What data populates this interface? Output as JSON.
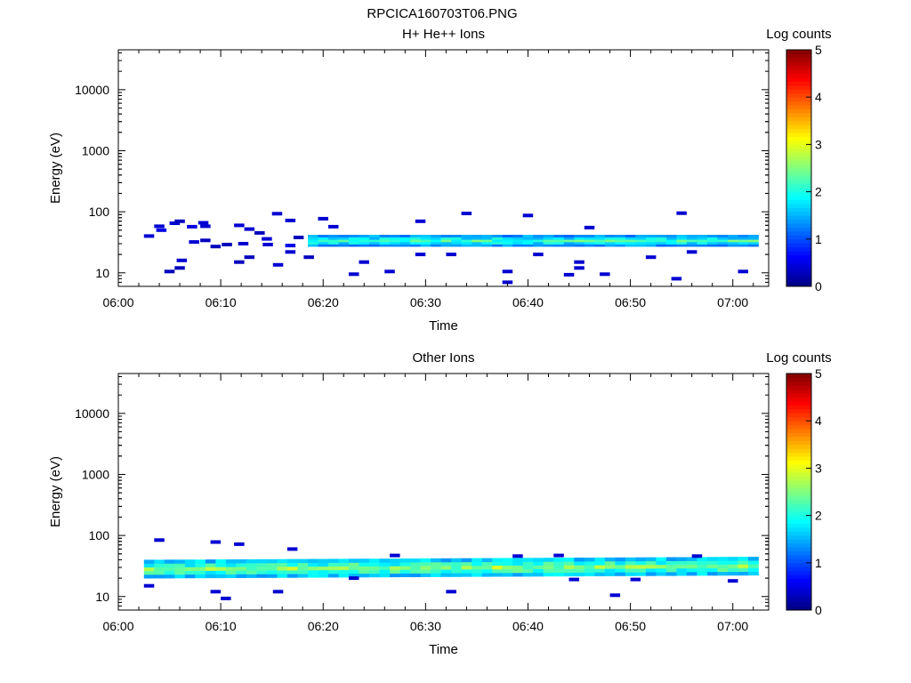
{
  "figure_title": "RPCICA160703T06.PNG",
  "chart_data": [
    {
      "type": "heatmap",
      "title": "H+ He++ Ions",
      "xlabel": "Time",
      "ylabel": "Energy (eV)",
      "x_ticks": [
        "06:00",
        "06:10",
        "06:20",
        "06:30",
        "06:40",
        "06:50",
        "07:00"
      ],
      "xlim_minutes": [
        0,
        63.5
      ],
      "y_scale": "log",
      "ylim": [
        6,
        45000
      ],
      "y_ticks": [
        10,
        100,
        1000,
        10000
      ],
      "y_tick_labels": [
        "10",
        "100",
        "1000",
        "10000"
      ],
      "colorbar": {
        "label": "Log counts",
        "range": [
          0,
          5
        ],
        "ticks": [
          "0",
          "1",
          "2",
          "3",
          "4",
          "5"
        ]
      },
      "band": {
        "t_start": 18.5,
        "t_end": 62.5,
        "e_low": 27,
        "e_high": 42,
        "peak_log_counts": 2.2
      },
      "sparse_points": [
        {
          "t": 3,
          "e": 40,
          "c": 0.4
        },
        {
          "t": 4,
          "e": 58,
          "c": 0.4
        },
        {
          "t": 4.2,
          "e": 50,
          "c": 0.5
        },
        {
          "t": 5,
          "e": 10.5,
          "c": 0.3
        },
        {
          "t": 5.5,
          "e": 65,
          "c": 0.4
        },
        {
          "t": 6,
          "e": 70,
          "c": 0.3
        },
        {
          "t": 6,
          "e": 12,
          "c": 0.3
        },
        {
          "t": 6.2,
          "e": 16,
          "c": 0.4
        },
        {
          "t": 7.2,
          "e": 57,
          "c": 0.5
        },
        {
          "t": 7.4,
          "e": 32,
          "c": 0.4
        },
        {
          "t": 8.3,
          "e": 66,
          "c": 0.4
        },
        {
          "t": 8.5,
          "e": 58,
          "c": 0.4
        },
        {
          "t": 8.5,
          "e": 34,
          "c": 0.3
        },
        {
          "t": 9.5,
          "e": 27,
          "c": 0.3
        },
        {
          "t": 10.6,
          "e": 29,
          "c": 0.3
        },
        {
          "t": 11.8,
          "e": 60,
          "c": 0.4
        },
        {
          "t": 11.8,
          "e": 15,
          "c": 0.3
        },
        {
          "t": 12.2,
          "e": 30,
          "c": 0.4
        },
        {
          "t": 12.8,
          "e": 52,
          "c": 0.4
        },
        {
          "t": 12.8,
          "e": 18,
          "c": 0.3
        },
        {
          "t": 13.8,
          "e": 45,
          "c": 0.3
        },
        {
          "t": 14.5,
          "e": 36,
          "c": 0.4
        },
        {
          "t": 14.6,
          "e": 29,
          "c": 0.4
        },
        {
          "t": 15.5,
          "e": 93,
          "c": 0.4
        },
        {
          "t": 15.6,
          "e": 13.5,
          "c": 0.4
        },
        {
          "t": 16.8,
          "e": 72,
          "c": 0.4
        },
        {
          "t": 16.8,
          "e": 28,
          "c": 0.5
        },
        {
          "t": 16.8,
          "e": 22,
          "c": 0.4
        },
        {
          "t": 17.6,
          "e": 38,
          "c": 0.3
        },
        {
          "t": 18.6,
          "e": 18,
          "c": 0.3
        },
        {
          "t": 20,
          "e": 77,
          "c": 0.4
        },
        {
          "t": 21,
          "e": 57,
          "c": 0.4
        },
        {
          "t": 23,
          "e": 9.5,
          "c": 0.4
        },
        {
          "t": 24,
          "e": 15,
          "c": 0.4
        },
        {
          "t": 26.5,
          "e": 10.5,
          "c": 0.4
        },
        {
          "t": 29.5,
          "e": 70,
          "c": 0.4
        },
        {
          "t": 29.5,
          "e": 20,
          "c": 0.4
        },
        {
          "t": 32.5,
          "e": 20,
          "c": 0.4
        },
        {
          "t": 34,
          "e": 94,
          "c": 0.4
        },
        {
          "t": 38,
          "e": 10.5,
          "c": 0.4
        },
        {
          "t": 38,
          "e": 7,
          "c": 0.4
        },
        {
          "t": 40,
          "e": 87,
          "c": 0.4
        },
        {
          "t": 41,
          "e": 20,
          "c": 0.4
        },
        {
          "t": 44,
          "e": 9.3,
          "c": 0.4
        },
        {
          "t": 45,
          "e": 15,
          "c": 0.4
        },
        {
          "t": 45,
          "e": 12,
          "c": 0.4
        },
        {
          "t": 46,
          "e": 55,
          "c": 0.4
        },
        {
          "t": 47.5,
          "e": 9.5,
          "c": 0.4
        },
        {
          "t": 52,
          "e": 18,
          "c": 0.4
        },
        {
          "t": 54.5,
          "e": 8,
          "c": 0.4
        },
        {
          "t": 55,
          "e": 95,
          "c": 0.4
        },
        {
          "t": 56,
          "e": 22,
          "c": 0.4
        },
        {
          "t": 61,
          "e": 10.5,
          "c": 0.4
        }
      ]
    },
    {
      "type": "heatmap",
      "title": "Other Ions",
      "xlabel": "Time",
      "ylabel": "Energy (eV)",
      "x_ticks": [
        "06:00",
        "06:10",
        "06:20",
        "06:30",
        "06:40",
        "06:50",
        "07:00"
      ],
      "xlim_minutes": [
        0,
        63.5
      ],
      "y_scale": "log",
      "ylim": [
        6,
        45000
      ],
      "y_ticks": [
        10,
        100,
        1000,
        10000
      ],
      "y_tick_labels": [
        "10",
        "100",
        "1000",
        "10000"
      ],
      "colorbar": {
        "label": "Log counts",
        "range": [
          0,
          5
        ],
        "ticks": [
          "0",
          "1",
          "2",
          "3",
          "4",
          "5"
        ]
      },
      "band": {
        "t_start": 2.5,
        "t_end": 62.5,
        "e_low": 20,
        "e_high": 40,
        "peak_log_counts": 2.6
      },
      "sparse_points": [
        {
          "t": 3,
          "e": 15,
          "c": 0.4
        },
        {
          "t": 4,
          "e": 84,
          "c": 0.4
        },
        {
          "t": 9.5,
          "e": 78,
          "c": 0.4
        },
        {
          "t": 9.5,
          "e": 12,
          "c": 0.4
        },
        {
          "t": 10.5,
          "e": 9.3,
          "c": 0.4
        },
        {
          "t": 11.8,
          "e": 72,
          "c": 0.4
        },
        {
          "t": 15.6,
          "e": 12,
          "c": 0.4
        },
        {
          "t": 17,
          "e": 60,
          "c": 0.4
        },
        {
          "t": 32.5,
          "e": 12,
          "c": 0.4
        },
        {
          "t": 48.5,
          "e": 10.5,
          "c": 0.4
        },
        {
          "t": 60,
          "e": 18,
          "c": 0.4
        },
        {
          "t": 27,
          "e": 47,
          "c": 0.4
        },
        {
          "t": 39,
          "e": 46,
          "c": 0.4
        },
        {
          "t": 43,
          "e": 47,
          "c": 0.4
        },
        {
          "t": 56.5,
          "e": 46,
          "c": 0.4
        },
        {
          "t": 23,
          "e": 20,
          "c": 0.4
        },
        {
          "t": 44.5,
          "e": 19,
          "c": 0.4
        },
        {
          "t": 50.5,
          "e": 19,
          "c": 0.4
        }
      ]
    }
  ]
}
